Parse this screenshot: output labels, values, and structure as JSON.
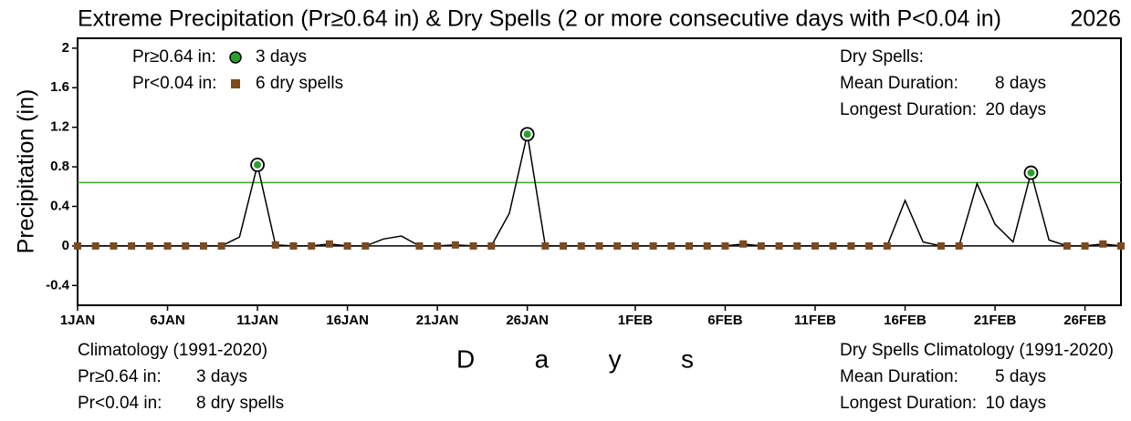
{
  "chart_data": {
    "type": "line",
    "title": "Extreme Precipitation (Pr≥0.64 in) & Dry Spells (2 or more consecutive days with P<0.04 in)",
    "year": "2026",
    "y_label": "Precipitation (in)",
    "x_label": "D a y s",
    "x": [
      1,
      2,
      3,
      4,
      5,
      6,
      7,
      8,
      9,
      10,
      11,
      12,
      13,
      14,
      15,
      16,
      17,
      18,
      19,
      20,
      21,
      22,
      23,
      24,
      25,
      26,
      27,
      28,
      29,
      30,
      31,
      32,
      33,
      34,
      35,
      36,
      37,
      38,
      39,
      40,
      41,
      42,
      43,
      44,
      45,
      46,
      47,
      48,
      49,
      50,
      51,
      52,
      53,
      54,
      55,
      56,
      57,
      58,
      59
    ],
    "series": [
      {
        "name": "Precipitation",
        "color": "#000000",
        "values": [
          0,
          0,
          0,
          0,
          0,
          0,
          0,
          0,
          0,
          0.09,
          0.82,
          0.01,
          0,
          0,
          0.02,
          0,
          0,
          0.07,
          0.1,
          0,
          0,
          0.01,
          0,
          0,
          0.33,
          1.13,
          0,
          0,
          0,
          0,
          0,
          0,
          0,
          0,
          0,
          0,
          0,
          0.02,
          0,
          0,
          0,
          0,
          0,
          0,
          0,
          0,
          0.46,
          0.04,
          0,
          0,
          0.63,
          0.22,
          0.04,
          0.74,
          0.06,
          0,
          0,
          0.02,
          0
        ]
      }
    ],
    "extreme_days": [
      11,
      26,
      54
    ],
    "extreme_color": "#2ca02c",
    "dry_days": [
      1,
      2,
      3,
      4,
      5,
      6,
      7,
      8,
      9,
      12,
      13,
      14,
      15,
      16,
      17,
      20,
      21,
      22,
      23,
      24,
      27,
      28,
      29,
      30,
      31,
      32,
      33,
      34,
      35,
      36,
      37,
      38,
      39,
      40,
      41,
      42,
      43,
      44,
      45,
      46,
      49,
      50,
      56,
      57,
      58,
      59
    ],
    "dry_color": "#7b4a1e",
    "threshold": 0.64,
    "threshold_color": "#33aa22",
    "xlim": [
      1,
      59
    ],
    "xticks": [
      {
        "value": 1,
        "label": "1JAN"
      },
      {
        "value": 6,
        "label": "6JAN"
      },
      {
        "value": 11,
        "label": "11JAN"
      },
      {
        "value": 16,
        "label": "16JAN"
      },
      {
        "value": 21,
        "label": "21JAN"
      },
      {
        "value": 26,
        "label": "26JAN"
      },
      {
        "value": 32,
        "label": "1FEB"
      },
      {
        "value": 37,
        "label": "6FEB"
      },
      {
        "value": 42,
        "label": "11FEB"
      },
      {
        "value": 47,
        "label": "16FEB"
      },
      {
        "value": 52,
        "label": "21FEB"
      },
      {
        "value": 57,
        "label": "26FEB"
      }
    ],
    "ylim": [
      -0.6,
      2.1
    ],
    "yticks": [
      {
        "value": -0.4,
        "label": "-0.4"
      },
      0,
      0.4,
      0.8,
      1.2,
      1.6,
      2
    ],
    "legend": {
      "extreme_label": "Pr≥0.64 in:",
      "extreme_count": "3 days",
      "dry_label": "Pr<0.04 in:",
      "dry_count": "6 dry spells"
    },
    "dry_stats": {
      "title": "Dry Spells:",
      "mean_label": "Mean Duration:",
      "mean_value": "8 days",
      "longest_label": "Longest Duration:",
      "longest_value": "20 days"
    },
    "climatology": {
      "title": "Climatology (1991-2020)",
      "extreme_label": "Pr≥0.64 in:",
      "extreme_count": "3 days",
      "dry_label": "Pr<0.04 in:",
      "dry_count": "8 dry spells"
    },
    "dry_climatology": {
      "title": "Dry Spells Climatology (1991-2020)",
      "mean_label": "Mean Duration:",
      "mean_value": "5 days",
      "longest_label": "Longest Duration:",
      "longest_value": "10 days"
    }
  }
}
